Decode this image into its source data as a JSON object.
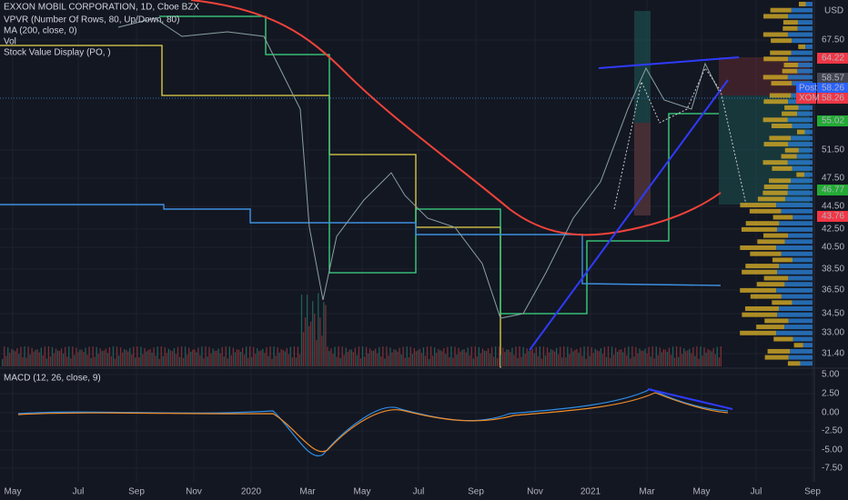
{
  "header": {
    "symbol": "EXXON MOBIL CORPORATION, 1D, Cboe BZX",
    "indicators": [
      "VPVR (Number Of Rows, 80, Up/Down, 80)",
      "MA (200, close, 0)",
      "Vol",
      "Stock Value Display (PO, )"
    ],
    "currency": "USD"
  },
  "price_axis": {
    "ticks": [
      "67.50",
      "51.50",
      "47.50",
      "44.50",
      "42.50",
      "40.50",
      "38.50",
      "36.50",
      "34.50",
      "33.00",
      "31.40"
    ],
    "labels": [
      {
        "text": "64.22"
      },
      {
        "text": "58.57"
      },
      {
        "tag": "Post",
        "text": "58.26"
      },
      {
        "tag": "XOM",
        "text": "58.26"
      },
      {
        "text": "55.02"
      },
      {
        "text": "46.77"
      },
      {
        "text": "43.76"
      }
    ]
  },
  "macd": {
    "title": "MACD (12, 26, close, 9)",
    "ticks": [
      "5.00",
      "2.50",
      "0.00",
      "-2.50",
      "-5.00",
      "-7.50"
    ]
  },
  "time_axis": [
    "May",
    "Jul",
    "Sep",
    "Nov",
    "2020",
    "Mar",
    "May",
    "Jul",
    "Sep",
    "Nov",
    "2021",
    "Mar",
    "May",
    "Jul",
    "Sep"
  ]
}
